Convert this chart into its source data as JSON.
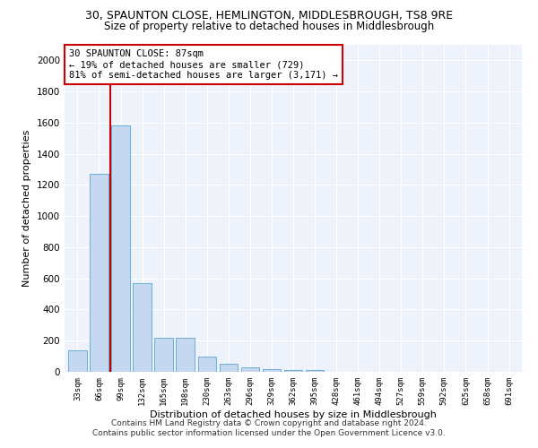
{
  "title_line1": "30, SPAUNTON CLOSE, HEMLINGTON, MIDDLESBROUGH, TS8 9RE",
  "title_line2": "Size of property relative to detached houses in Middlesbrough",
  "xlabel": "Distribution of detached houses by size in Middlesbrough",
  "ylabel": "Number of detached properties",
  "footnote1": "Contains HM Land Registry data © Crown copyright and database right 2024.",
  "footnote2": "Contains public sector information licensed under the Open Government Licence v3.0.",
  "annotation_line1": "30 SPAUNTON CLOSE: 87sqm",
  "annotation_line2": "← 19% of detached houses are smaller (729)",
  "annotation_line3": "81% of semi-detached houses are larger (3,171) →",
  "bar_color": "#c5d8f0",
  "bar_edge_color": "#6baed6",
  "vline_color": "#cc0000",
  "vline_x": 1.5,
  "categories": [
    "33sqm",
    "66sqm",
    "99sqm",
    "132sqm",
    "165sqm",
    "198sqm",
    "230sqm",
    "263sqm",
    "296sqm",
    "329sqm",
    "362sqm",
    "395sqm",
    "428sqm",
    "461sqm",
    "494sqm",
    "527sqm",
    "559sqm",
    "592sqm",
    "625sqm",
    "658sqm",
    "691sqm"
  ],
  "values": [
    140,
    1270,
    1580,
    570,
    220,
    220,
    95,
    50,
    30,
    20,
    10,
    10,
    0,
    0,
    0,
    0,
    0,
    0,
    0,
    0,
    0
  ],
  "ylim": [
    0,
    2100
  ],
  "yticks": [
    0,
    200,
    400,
    600,
    800,
    1000,
    1200,
    1400,
    1600,
    1800,
    2000
  ],
  "background_color": "#eef2fb",
  "title1_fontsize": 9,
  "title2_fontsize": 8.5,
  "annot_fontsize": 7.5,
  "xlabel_fontsize": 8,
  "ylabel_fontsize": 8,
  "footnote_fontsize": 6.5
}
